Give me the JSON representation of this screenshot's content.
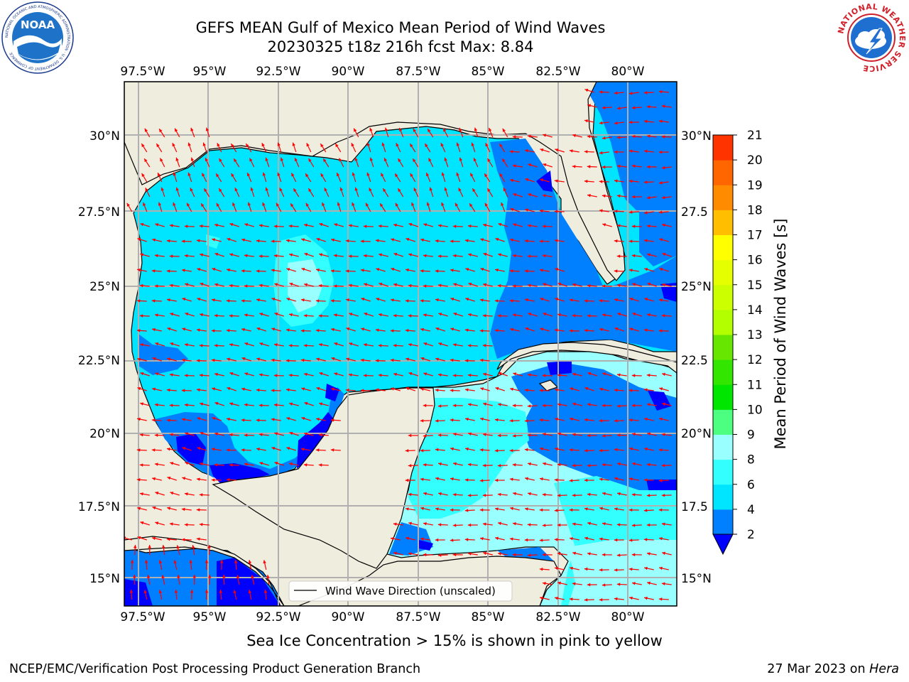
{
  "header": {
    "title_line1": "GEFS MEAN Gulf of Mexico Mean Period of Wind Waves",
    "title_line2": "20230325 t18z 216h fcst   Max: 8.84"
  },
  "logos": {
    "left": "noaa-logo",
    "right": "nws-logo",
    "left_text": "NOAA",
    "left_ring_text": "NATIONAL OCEANIC AND ATMOSPHERIC ADMINISTRATION · U.S. DEPARTMENT OF COMMERCE",
    "right_ring_text": "NATIONAL WEATHER SERVICE"
  },
  "map": {
    "lon_labels": [
      "97.5°W",
      "95°W",
      "92.5°W",
      "90°W",
      "87.5°W",
      "85°W",
      "82.5°W",
      "80°W"
    ],
    "lat_labels": [
      "30°N",
      "27.5°N",
      "25°N",
      "22.5°N",
      "20°N",
      "17.5°N",
      "15°N"
    ],
    "lat_labels_right": [
      "30°N",
      "27.5",
      "25°N",
      "22.5",
      "20°N",
      "17.5",
      "15°N"
    ],
    "legend_label": "Wind Wave Direction (unscaled)",
    "arrow_color": "#ff0000",
    "land_color": "#efedde",
    "lon_range": [
      -98,
      -79
    ],
    "lat_range": [
      14,
      31.5
    ]
  },
  "colorbar": {
    "label": "Mean Period of Wind Waves [s]",
    "ticks": [
      "2",
      "4",
      "6",
      "8",
      "9",
      "10",
      "11",
      "12",
      "13",
      "14",
      "15",
      "16",
      "17",
      "18",
      "19",
      "20",
      "21"
    ],
    "colors": [
      "#0080ff",
      "#00e5ff",
      "#33ffff",
      "#99ffff",
      "#4dff80",
      "#00e600",
      "#33e600",
      "#66e600",
      "#b3ff00",
      "#ccff00",
      "#e6ff00",
      "#ffff00",
      "#ffbf00",
      "#ff8c00",
      "#ff6600",
      "#ff3300",
      "#ff0000"
    ],
    "under_color": "#0000ff"
  },
  "notes": {
    "ice": "Sea Ice Concentration > 15% is shown in pink to yellow"
  },
  "footer": {
    "left": "NCEP/EMC/Verification Post Processing Product Generation Branch",
    "right_date": "27 Mar 2023 on",
    "right_machine": "Hera"
  }
}
